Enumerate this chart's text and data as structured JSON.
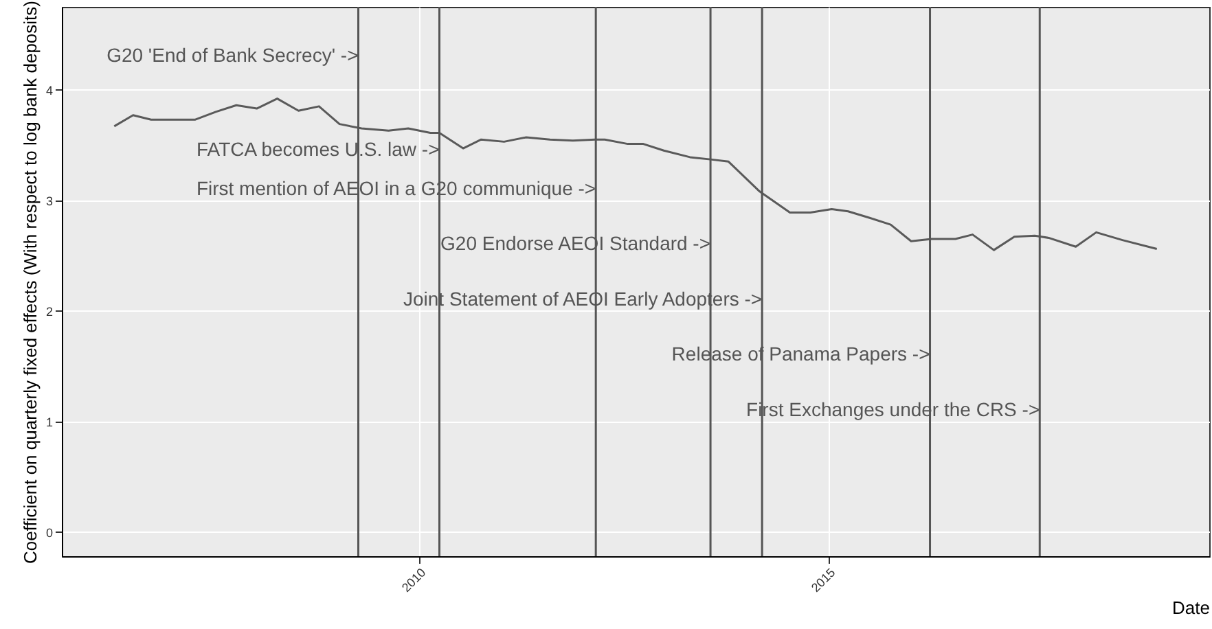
{
  "chart_data": {
    "type": "line",
    "xlabel": "Date",
    "ylabel": "Coefficient on quarterly fixed effects (With respect to log bank deposits)",
    "xlim": [
      2005.64,
      2019.65
    ],
    "xticks": [
      2010,
      2015
    ],
    "ylim": [
      -0.22,
      4.75
    ],
    "yticks": [
      0,
      1,
      2,
      3,
      4
    ],
    "grid": true,
    "series": [
      {
        "color": "#5a5a5a",
        "x": [
          2006.28,
          2006.51,
          2006.73,
          2006.95,
          2007.27,
          2007.52,
          2007.77,
          2008.02,
          2008.27,
          2008.53,
          2008.78,
          2009.03,
          2009.3,
          2009.63,
          2009.87,
          2010.14,
          2010.25,
          2010.54,
          2010.76,
          2011.04,
          2011.31,
          2011.6,
          2011.88,
          2012.15,
          2012.27,
          2012.55,
          2012.74,
          2012.99,
          2013.31,
          2013.56,
          2013.78,
          2014.16,
          2014.53,
          2014.78,
          2015.04,
          2015.24,
          2015.51,
          2015.76,
          2016.01,
          2016.26,
          2016.55,
          2016.76,
          2017.02,
          2017.27,
          2017.52,
          2017.69,
          2018.02,
          2018.27,
          2018.59,
          2019.01
        ],
        "values": [
          3.67,
          3.77,
          3.73,
          3.73,
          3.73,
          3.8,
          3.86,
          3.83,
          3.92,
          3.81,
          3.85,
          3.69,
          3.65,
          3.63,
          3.65,
          3.61,
          3.61,
          3.47,
          3.55,
          3.53,
          3.57,
          3.55,
          3.54,
          3.55,
          3.55,
          3.51,
          3.51,
          3.45,
          3.39,
          3.37,
          3.35,
          3.08,
          2.89,
          2.89,
          2.92,
          2.9,
          2.84,
          2.78,
          2.63,
          2.65,
          2.65,
          2.69,
          2.55,
          2.67,
          2.68,
          2.66,
          2.58,
          2.71,
          2.64,
          2.56
        ]
      }
    ],
    "ref_lines": [
      {
        "axis": "x",
        "value": 2009.26,
        "color": "#555555"
      },
      {
        "axis": "x",
        "value": 2010.25,
        "color": "#555555"
      },
      {
        "axis": "x",
        "value": 2012.16,
        "color": "#555555"
      },
      {
        "axis": "x",
        "value": 2013.56,
        "color": "#555555"
      },
      {
        "axis": "x",
        "value": 2014.19,
        "color": "#555555"
      },
      {
        "axis": "x",
        "value": 2016.24,
        "color": "#555555"
      },
      {
        "axis": "x",
        "value": 2017.58,
        "color": "#555555"
      }
    ],
    "annotations": [
      {
        "text": "G20 'End of Bank Secrecy' ->",
        "x": 2009.26,
        "y": 4.3
      },
      {
        "text": "FATCA becomes U.S. law ->",
        "x": 2010.25,
        "y": 3.45
      },
      {
        "text": "First mention of AEOI in a G20 communique ->",
        "x": 2012.16,
        "y": 3.1
      },
      {
        "text": "G20 Endorse AEOI Standard ->",
        "x": 2013.56,
        "y": 2.6
      },
      {
        "text": "Joint Statement of AEOI Early Adopters ->",
        "x": 2014.19,
        "y": 2.1
      },
      {
        "text": "Release of Panama Papers ->",
        "x": 2016.24,
        "y": 1.6
      },
      {
        "text": "First Exchanges under the CRS ->",
        "x": 2017.58,
        "y": 1.1
      }
    ]
  }
}
